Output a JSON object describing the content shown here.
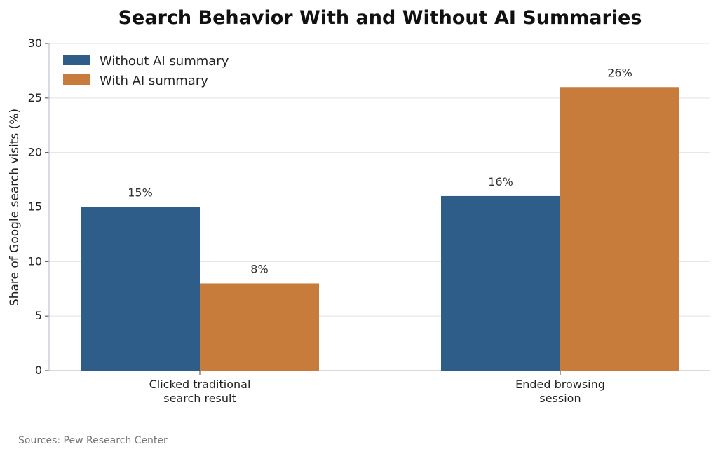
{
  "chart_data": {
    "type": "bar",
    "title": "Search Behavior With and Without AI Summaries",
    "ylabel": "Share of Google search visits (%)",
    "xlabel": "",
    "categories": [
      [
        "Clicked traditional",
        "search result"
      ],
      [
        "Ended browsing",
        "session"
      ]
    ],
    "series": [
      {
        "name": "Without AI summary",
        "color": "#2e5d8a",
        "values": [
          15,
          16
        ],
        "labels": [
          "15%",
          "16%"
        ]
      },
      {
        "name": "With AI summary",
        "color": "#c77c3c",
        "values": [
          8,
          26
        ],
        "labels": [
          "8%",
          "26%"
        ]
      }
    ],
    "ylim": [
      0,
      30
    ],
    "yticks": [
      0,
      5,
      10,
      15,
      20,
      25,
      30
    ],
    "grid": true,
    "legend_position": "top-left"
  },
  "source_note": "Sources: Pew Research Center"
}
